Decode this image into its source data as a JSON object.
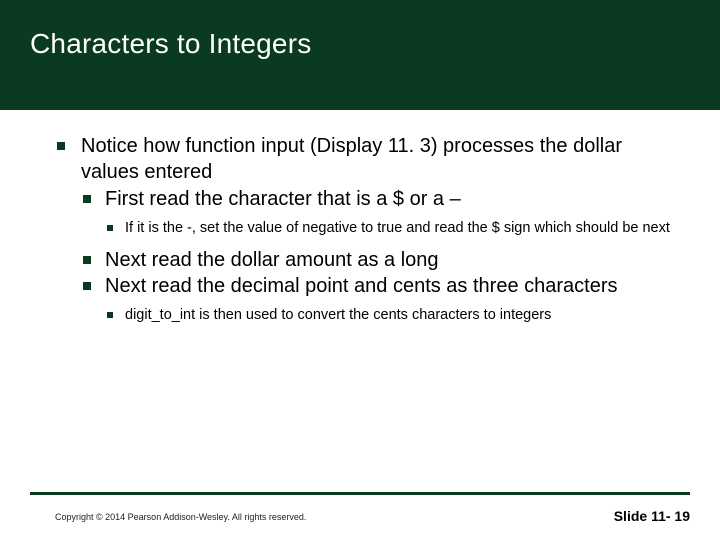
{
  "colors": {
    "band": "#0a3a1f",
    "title_text": "#ffffff",
    "bullet": "#0a3a1f",
    "footer_line": "#0a3a1f",
    "body_text": "#000000"
  },
  "title": "Characters to Integers",
  "bullets": {
    "l1": "Notice how function input (Display 11. 3) processes the dollar values entered",
    "l2a": "First read the character that is a $ or a –",
    "l3a": "If it is the -, set the value of negative to true and read the $ sign which should be next",
    "l2b": "Next read the dollar amount as a long",
    "l2c": "Next read the decimal point and cents as three characters",
    "l3b": "digit_to_int is then used to convert the cents characters to integers"
  },
  "footer": {
    "copyright": "Copyright © 2014 Pearson Addison-Wesley.  All rights reserved.",
    "slide": "Slide 11- 19"
  }
}
